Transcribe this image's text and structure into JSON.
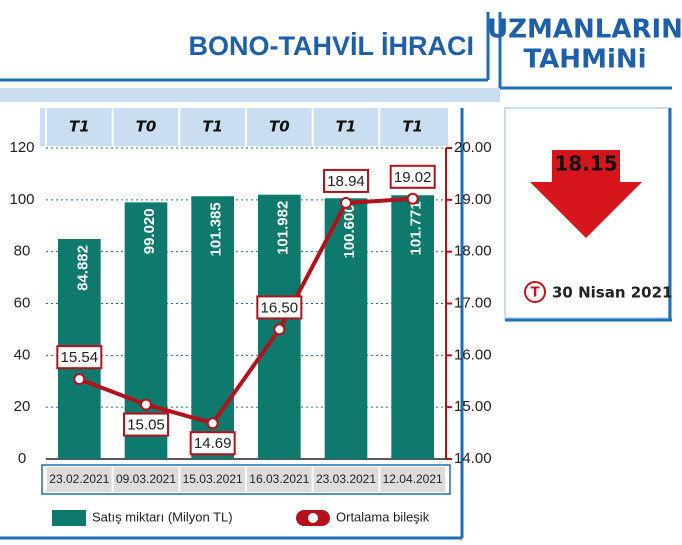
{
  "chart_data": {
    "type": "bar-line",
    "title": "BONO-TAHVİL İHRACI",
    "column_labels": [
      "T1",
      "T0",
      "T1",
      "T0",
      "T1",
      "T1"
    ],
    "categories": [
      "23.02.2021",
      "09.03.2021",
      "15.03.2021",
      "16.03.2021",
      "23.03.2021",
      "12.04.2021"
    ],
    "series": [
      {
        "name": "Satış miktarı (Milyon TL)",
        "color": "#0e7a6d",
        "type": "bar",
        "values": [
          84.882,
          99.02,
          101.385,
          101.982,
          100.6,
          101.771
        ],
        "value_labels": [
          "84.882",
          "99.020",
          "101.385",
          "101.982",
          "100.600",
          "101.771"
        ]
      },
      {
        "name": "Ortalama bileşik",
        "color": "#b3111b",
        "type": "line",
        "axis": "y2",
        "values": [
          15.54,
          15.05,
          14.69,
          16.5,
          18.94,
          19.02
        ],
        "value_labels": [
          "15.54",
          "15.05",
          "14.69",
          "16.50",
          "18.94",
          "19.02"
        ]
      }
    ],
    "ylim": [
      0,
      120
    ],
    "yticks": [
      0,
      20,
      40,
      60,
      80,
      100,
      120
    ],
    "y2lim": [
      14,
      20
    ],
    "y2ticks": [
      {
        "value": 14,
        "label": "14.00"
      },
      {
        "value": 15,
        "label": "15.00"
      },
      {
        "value": 16,
        "label": "16.00"
      },
      {
        "value": 17,
        "label": "17.00"
      },
      {
        "value": 18,
        "label": "18.00"
      },
      {
        "value": 19,
        "label": "19.00"
      },
      {
        "value": 20,
        "label": "20.00"
      }
    ],
    "grid": true
  },
  "forecast": {
    "title": [
      "UZMANLARIN",
      "TAHMiNi"
    ],
    "value": 18.15,
    "logo": "T",
    "date": "30 Nisan 2021"
  }
}
